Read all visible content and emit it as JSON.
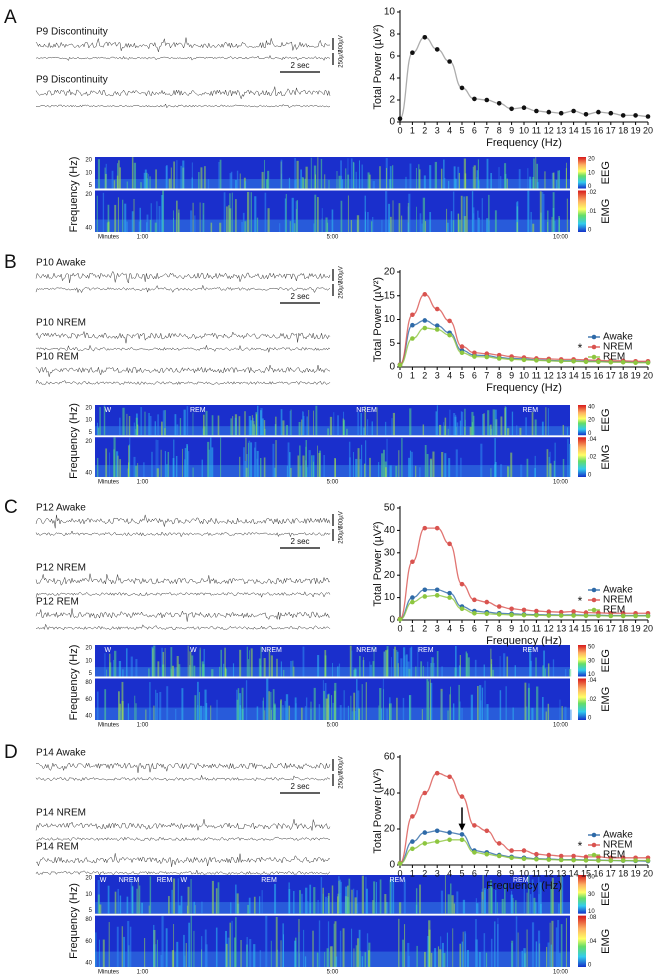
{
  "panels": [
    {
      "letter": "A",
      "traces": [
        "P9 Discontinuity",
        "P9 Discontinuity"
      ],
      "scale": [
        "300µV",
        "250µV",
        "2 sec"
      ],
      "spectrogram": {
        "ylabel": "Frequency (Hz)",
        "eeg_ticks": [
          "20",
          "10",
          "5"
        ],
        "emg_ticks": [
          "20",
          "40"
        ],
        "times": [
          "Minutes",
          "1:00",
          "5:00",
          "10:00"
        ],
        "states": [],
        "channels": [
          "EEG",
          "EMG"
        ],
        "eeg_scale": [
          "20",
          "10",
          "0"
        ],
        "emg_scale": [
          ".02",
          ".01",
          "0"
        ]
      }
    },
    {
      "letter": "B",
      "traces": [
        "P10 Awake",
        "P10 NREM",
        "P10 REM"
      ],
      "scale": [
        "300µV",
        "250µV",
        "2 sec"
      ],
      "spectrogram": {
        "ylabel": "Frequency (Hz)",
        "eeg_ticks": [
          "20",
          "10",
          "5"
        ],
        "emg_ticks": [
          "20",
          "40"
        ],
        "times": [
          "Minutes",
          "1:00",
          "5:00",
          "10:00"
        ],
        "states": [
          "W",
          "REM",
          "NREM",
          "REM"
        ],
        "channels": [
          "EEG",
          "EMG"
        ],
        "eeg_scale": [
          "40",
          "20",
          "0"
        ],
        "emg_scale": [
          ".04",
          ".02",
          "0"
        ]
      }
    },
    {
      "letter": "C",
      "traces": [
        "P12 Awake",
        "P12 NREM",
        "P12 REM"
      ],
      "scale": [
        "500µV",
        "250µV",
        "2 sec"
      ],
      "spectrogram": {
        "ylabel": "Frequency (Hz)",
        "eeg_ticks": [
          "20",
          "10",
          "5"
        ],
        "emg_ticks": [
          "80",
          "60",
          "40"
        ],
        "times": [
          "Minutes",
          "1:00",
          "5:00",
          "10:00"
        ],
        "states": [
          "W",
          "W",
          "NREM",
          "NREM",
          "REM",
          "REM"
        ],
        "channels": [
          "EEG",
          "EMG"
        ],
        "eeg_scale": [
          "50",
          "30",
          "10"
        ],
        "emg_scale": [
          ".04",
          ".02",
          "0"
        ]
      }
    },
    {
      "letter": "D",
      "traces": [
        "P14 Awake",
        "P14 NREM",
        "P14 REM"
      ],
      "scale": [
        "500µV",
        "250µV",
        "2 sec"
      ],
      "spectrogram": {
        "ylabel": "Frequency (Hz)",
        "eeg_ticks": [
          "20",
          "10",
          "5"
        ],
        "emg_ticks": [
          "80",
          "60",
          "40"
        ],
        "times": [
          "Minutes",
          "1:00",
          "5:00",
          "10:00"
        ],
        "states": [
          "W",
          "NREM",
          "REM",
          "W",
          "REM",
          "REM",
          "REM"
        ],
        "channels": [
          "EEG",
          "EMG"
        ],
        "eeg_scale": [
          "50",
          "30",
          "10"
        ],
        "emg_scale": [
          ".08",
          ".04",
          "0"
        ]
      }
    }
  ],
  "chart_data": [
    {
      "type": "line",
      "xlabel": "Frequency (Hz)",
      "ylabel": "Total Power (µV²)",
      "x": [
        0,
        1,
        2,
        3,
        4,
        5,
        6,
        7,
        8,
        9,
        10,
        11,
        12,
        13,
        14,
        15,
        16,
        17,
        18,
        19,
        20
      ],
      "xlim": [
        0,
        20
      ],
      "xticks": [
        0,
        1,
        2,
        3,
        4,
        5,
        6,
        7,
        8,
        9,
        10,
        11,
        12,
        13,
        14,
        15,
        16,
        17,
        18,
        19,
        20
      ],
      "ylim": [
        0,
        10
      ],
      "yticks": [
        0,
        2,
        4,
        6,
        8,
        10
      ],
      "color": "#111111",
      "line_color": "#999999",
      "values": [
        0.3,
        6.3,
        7.7,
        6.6,
        5.5,
        3.1,
        2.1,
        2.0,
        1.7,
        1.2,
        1.3,
        1.0,
        0.9,
        0.8,
        1.0,
        0.7,
        0.9,
        0.8,
        0.6,
        0.6,
        0.5
      ]
    },
    {
      "type": "line",
      "xlabel": "Frequency (Hz)",
      "ylabel": "Total Power (µV²)",
      "x": [
        0,
        1,
        2,
        3,
        4,
        5,
        6,
        7,
        8,
        9,
        10,
        11,
        12,
        13,
        14,
        15,
        16,
        17,
        18,
        19,
        20
      ],
      "xlim": [
        0,
        20
      ],
      "xticks": [
        0,
        1,
        2,
        3,
        4,
        5,
        6,
        7,
        8,
        9,
        10,
        11,
        12,
        13,
        14,
        15,
        16,
        17,
        18,
        19,
        20
      ],
      "ylim": [
        0,
        20
      ],
      "yticks": [
        0,
        5,
        10,
        15,
        20
      ],
      "legend": "right",
      "annotation": "*",
      "series": [
        {
          "name": "Awake",
          "color": "#2e6aa8",
          "values": [
            0.5,
            8.8,
            9.8,
            8.7,
            7.2,
            3.5,
            2.5,
            2.4,
            2.0,
            1.8,
            1.7,
            1.5,
            1.4,
            1.3,
            1.3,
            1.2,
            1.2,
            1.1,
            1.1,
            1.0,
            1.0
          ]
        },
        {
          "name": "NREM",
          "color": "#d9534f",
          "values": [
            0.5,
            11,
            15.3,
            12.2,
            9.7,
            4.3,
            3.0,
            2.8,
            2.5,
            2.2,
            2.0,
            1.8,
            1.7,
            1.6,
            1.6,
            1.5,
            1.4,
            1.3,
            1.3,
            1.2,
            1.2
          ]
        },
        {
          "name": "REM",
          "color": "#8dc63f",
          "values": [
            0.4,
            6.0,
            8.2,
            7.9,
            6.7,
            3.0,
            2.2,
            2.1,
            1.8,
            1.6,
            1.5,
            1.4,
            1.3,
            1.2,
            1.2,
            1.1,
            1.1,
            1.0,
            1.0,
            0.9,
            0.9
          ]
        }
      ]
    },
    {
      "type": "line",
      "xlabel": "Frequency (Hz)",
      "ylabel": "Total Power (µV²)",
      "x": [
        0,
        1,
        2,
        3,
        4,
        5,
        6,
        7,
        8,
        9,
        10,
        11,
        12,
        13,
        14,
        15,
        16,
        17,
        18,
        19,
        20
      ],
      "xlim": [
        0,
        20
      ],
      "xticks": [
        0,
        1,
        2,
        3,
        4,
        5,
        6,
        7,
        8,
        9,
        10,
        11,
        12,
        13,
        14,
        15,
        16,
        17,
        18,
        19,
        20
      ],
      "ylim": [
        0,
        50
      ],
      "yticks": [
        0,
        10,
        20,
        30,
        40,
        50
      ],
      "legend": "right",
      "annotation": "*",
      "series": [
        {
          "name": "Awake",
          "color": "#2e6aa8",
          "values": [
            0.5,
            10,
            13.5,
            13.5,
            12,
            6,
            4,
            3.5,
            3,
            2.8,
            2.5,
            2.4,
            2.3,
            2.2,
            2.3,
            2.1,
            2.1,
            2.0,
            2.0,
            2.0,
            2.0
          ]
        },
        {
          "name": "NREM",
          "color": "#d9534f",
          "values": [
            0.5,
            26,
            41,
            41,
            34,
            16,
            9,
            8,
            6,
            5,
            4.5,
            4,
            3.7,
            3.5,
            3.8,
            3.3,
            3.2,
            3.0,
            3.0,
            3.0,
            3.0
          ]
        },
        {
          "name": "REM",
          "color": "#8dc63f",
          "values": [
            0.3,
            8,
            10.5,
            11,
            10,
            5,
            3,
            2.8,
            2.5,
            2.3,
            2.2,
            2.1,
            2.0,
            2.0,
            2.0,
            1.9,
            1.9,
            1.8,
            1.8,
            1.8,
            1.8
          ]
        }
      ]
    },
    {
      "type": "line",
      "xlabel": "Frequency (Hz)",
      "ylabel": "Total Power (µV²)",
      "x": [
        0,
        1,
        2,
        3,
        4,
        5,
        6,
        7,
        8,
        9,
        10,
        11,
        12,
        13,
        14,
        15,
        16,
        17,
        18,
        19,
        20
      ],
      "xlim": [
        0,
        20
      ],
      "xticks": [
        0,
        1,
        2,
        3,
        4,
        5,
        6,
        7,
        8,
        9,
        10,
        11,
        12,
        13,
        14,
        15,
        16,
        17,
        18,
        19,
        20
      ],
      "ylim": [
        0,
        60
      ],
      "yticks": [
        0,
        20,
        40,
        60
      ],
      "legend": "right",
      "annotation": "*",
      "series": [
        {
          "name": "Awake",
          "color": "#2e6aa8",
          "values": [
            1,
            13,
            18,
            19,
            18,
            17,
            8,
            7,
            5.5,
            4.5,
            4,
            3.5,
            3.3,
            3,
            3,
            2.8,
            2.7,
            2.5,
            2.4,
            2.3,
            2.2
          ]
        },
        {
          "name": "NREM",
          "color": "#d9534f",
          "values": [
            1,
            27,
            40,
            51,
            49,
            38,
            22,
            19,
            12,
            8,
            8,
            6,
            5.5,
            5,
            5,
            4.5,
            4.5,
            4,
            4,
            4,
            4
          ]
        },
        {
          "name": "REM",
          "color": "#8dc63f",
          "values": [
            0.8,
            9,
            12,
            13,
            14,
            14,
            7,
            6,
            5,
            4,
            3.5,
            3.2,
            3,
            2.8,
            2.7,
            2.6,
            2.5,
            2.5,
            2.5,
            2.5,
            2.5
          ]
        }
      ]
    }
  ]
}
